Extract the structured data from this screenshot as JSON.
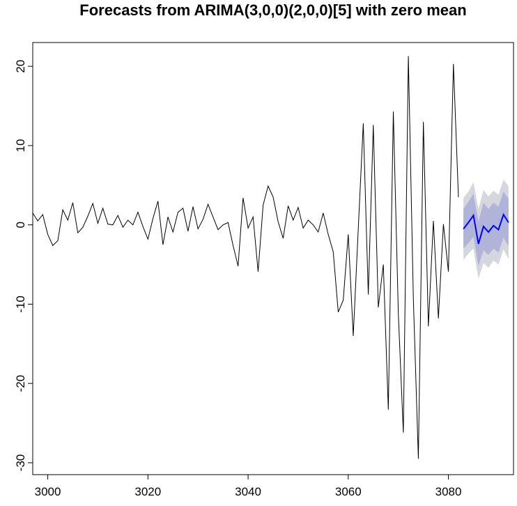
{
  "chart_data": {
    "type": "line",
    "title": "Forecasts from ARIMA(3,0,0)(2,0,0)[5] with zero mean",
    "xlabel": "",
    "ylabel": "",
    "xlim": [
      2997,
      3093
    ],
    "ylim": [
      -31.5,
      23
    ],
    "x_ticks": [
      3000,
      3020,
      3040,
      3060,
      3080
    ],
    "y_ticks": [
      -30,
      -20,
      -10,
      0,
      10,
      20
    ],
    "grid": false,
    "colors": {
      "observed": "#000000",
      "forecast": "#0000FF",
      "band_95": "#D6D6DF",
      "band_80": "#B0B4D8"
    },
    "series": [
      {
        "kind": "observed",
        "x_start": 2997,
        "values": [
          1.5,
          0.5,
          1.3,
          -1.2,
          -2.6,
          -2.0,
          1.9,
          0.6,
          2.8,
          -1.0,
          -0.3,
          1.1,
          2.7,
          0.2,
          2.1,
          0.1,
          0.0,
          1.2,
          -0.3,
          0.6,
          0.0,
          1.6,
          -0.2,
          -1.8,
          0.8,
          3.0,
          -2.5,
          1.0,
          -0.9,
          1.6,
          2.1,
          -0.8,
          2.3,
          -0.5,
          0.7,
          2.6,
          1.0,
          -0.6,
          0.0,
          0.3,
          -2.6,
          -5.2,
          3.4,
          -0.4,
          1.0,
          -5.9,
          2.5,
          4.9,
          3.5,
          0.4,
          -1.7,
          2.4,
          0.6,
          2.2,
          -0.4,
          0.6,
          0.0,
          -0.9,
          1.5,
          -1.2,
          -3.4,
          -11.0,
          -9.5,
          -1.2,
          -14.0,
          -0.5,
          12.8,
          -8.8,
          12.6,
          -10.4,
          -5.0,
          -23.3,
          14.3,
          -11.2,
          -26.2,
          21.3,
          -9.3,
          -29.5,
          13.0,
          -12.8,
          0.5,
          -11.8,
          0.1,
          -5.9,
          20.3,
          3.5
        ]
      },
      {
        "kind": "forecast",
        "name": "",
        "x_start": 3083,
        "values": [
          -0.5,
          0.3,
          1.2,
          -2.4,
          -0.2,
          -0.9,
          -0.1,
          -0.6,
          1.3,
          0.3
        ],
        "lo80": [
          -3.0,
          -2.3,
          -1.5,
          -5.2,
          -3.2,
          -3.8,
          -3.0,
          -3.5,
          -1.6,
          -2.7
        ],
        "hi80": [
          2.0,
          2.9,
          3.9,
          0.4,
          2.8,
          2.0,
          2.8,
          2.3,
          4.2,
          3.3
        ],
        "lo95": [
          -4.4,
          -3.6,
          -3.0,
          -6.8,
          -4.8,
          -5.4,
          -4.5,
          -5.0,
          -3.1,
          -4.3
        ],
        "hi95": [
          3.4,
          4.2,
          5.4,
          2.0,
          4.4,
          3.6,
          4.3,
          3.8,
          5.7,
          4.9
        ]
      }
    ]
  }
}
